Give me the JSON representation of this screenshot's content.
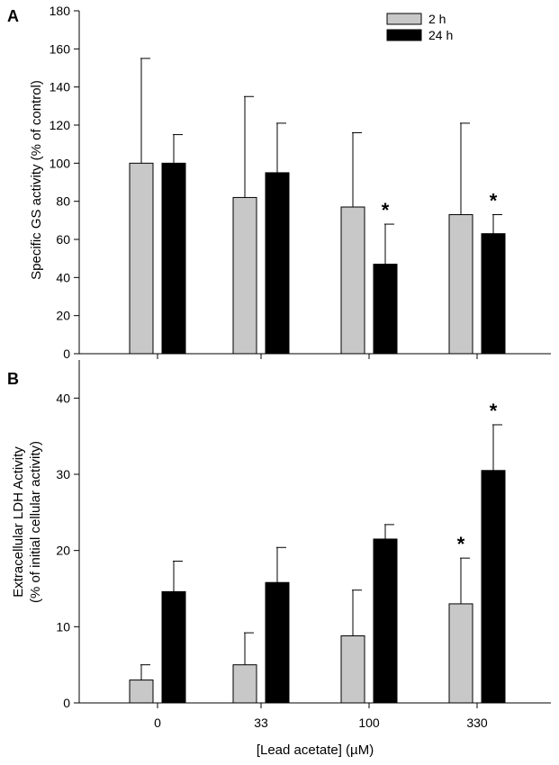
{
  "x_axis": {
    "label": "[Lead acetate] (µM)",
    "categories": [
      "0",
      "33",
      "100",
      "330"
    ]
  },
  "legend": {
    "entries": [
      {
        "label": "2 h",
        "color": "#c8c8c8"
      },
      {
        "label": "24 h",
        "color": "#000000"
      }
    ]
  },
  "chart_data": [
    {
      "panel": "A",
      "type": "bar",
      "title": "",
      "ylabel": "Specific GS activity (% of control)",
      "ylabel_lines": [
        "Specific GS activity (% of control)"
      ],
      "ylim": [
        0,
        180
      ],
      "yticks": [
        0,
        20,
        40,
        60,
        80,
        100,
        120,
        140,
        160,
        180
      ],
      "categories": [
        "0",
        "33",
        "100",
        "330"
      ],
      "series": [
        {
          "name": "2 h",
          "color": "#c8c8c8",
          "values": [
            100,
            82,
            77,
            73
          ],
          "errors": [
            55,
            53,
            39,
            48
          ],
          "significant": [
            false,
            false,
            false,
            false
          ]
        },
        {
          "name": "24 h",
          "color": "#000000",
          "values": [
            100,
            95,
            47,
            63
          ],
          "errors": [
            15,
            26,
            21,
            10
          ],
          "significant": [
            false,
            false,
            true,
            true
          ]
        }
      ],
      "significance_marker": "*"
    },
    {
      "panel": "B",
      "type": "bar",
      "title": "",
      "ylabel": "Extracellular LDH Activity (% of initial cellular activity)",
      "ylabel_lines": [
        "Extracellular LDH Activity",
        "(% of initial cellular activity)"
      ],
      "ylim": [
        0,
        45
      ],
      "yticks": [
        0,
        10,
        20,
        30,
        40
      ],
      "categories": [
        "0",
        "33",
        "100",
        "330"
      ],
      "series": [
        {
          "name": "2 h",
          "color": "#c8c8c8",
          "values": [
            3,
            5,
            8.8,
            13
          ],
          "errors": [
            2,
            4.2,
            6,
            6
          ],
          "significant": [
            false,
            false,
            false,
            true
          ]
        },
        {
          "name": "24 h",
          "color": "#000000",
          "values": [
            14.6,
            15.8,
            21.5,
            30.5
          ],
          "errors": [
            4,
            4.6,
            1.9,
            6
          ],
          "significant": [
            false,
            false,
            false,
            true
          ]
        }
      ],
      "significance_marker": "*"
    }
  ]
}
